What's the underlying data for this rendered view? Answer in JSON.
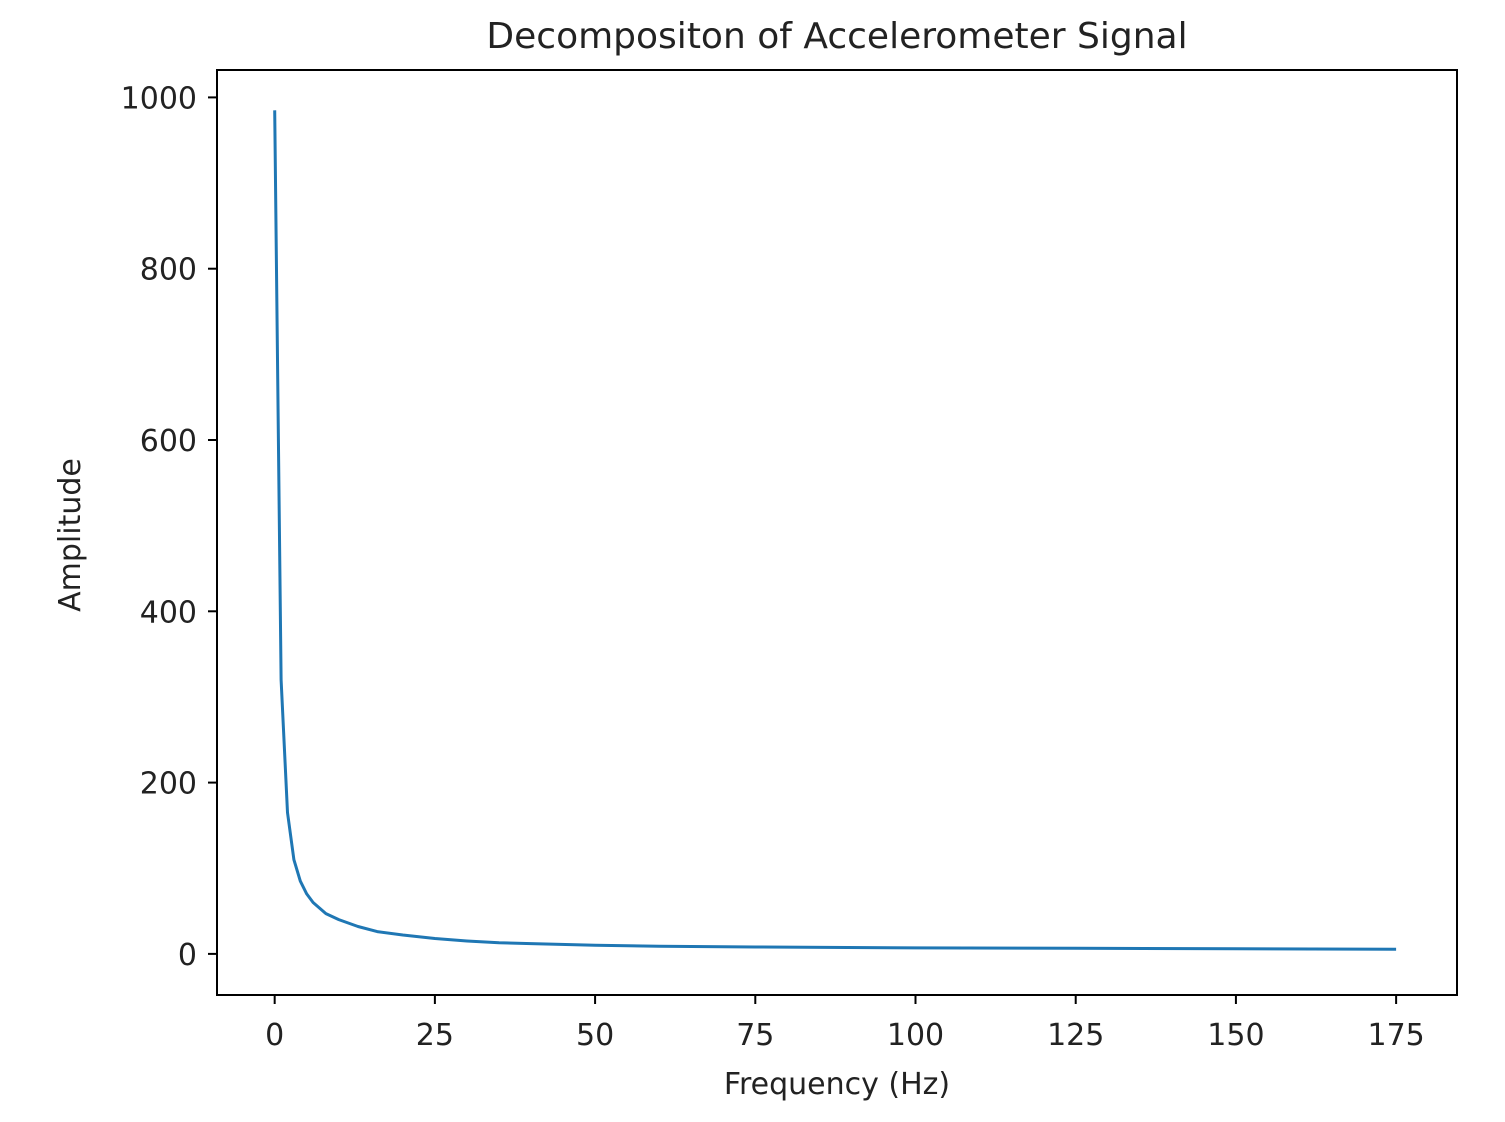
{
  "chart_data": {
    "type": "line",
    "title": "Decompositon of Accelerometer Signal",
    "xlabel": "Frequency (Hz)",
    "ylabel": "Amplitude",
    "xlim": [
      -9,
      184.5
    ],
    "ylim": [
      -48,
      1032
    ],
    "xticks": [
      0,
      25,
      50,
      75,
      100,
      125,
      150,
      175
    ],
    "xtick_labels": [
      "0",
      "25",
      "50",
      "75",
      "100",
      "125",
      "150",
      "175"
    ],
    "yticks": [
      0,
      200,
      400,
      600,
      800,
      1000
    ],
    "ytick_labels": [
      "0",
      "200",
      "400",
      "600",
      "800",
      "1000"
    ],
    "grid": false,
    "series": [
      {
        "color": "#1f77b4",
        "x": [
          0,
          1,
          2,
          3,
          4,
          5,
          6,
          8,
          10,
          13,
          16,
          20,
          25,
          30,
          35,
          40,
          50,
          60,
          75,
          100,
          125,
          150,
          175
        ],
        "y": [
          985,
          320,
          165,
          110,
          85,
          70,
          60,
          47,
          40,
          32,
          26,
          22,
          18,
          15,
          13,
          12,
          10,
          9,
          8,
          7,
          6.5,
          6,
          5.5
        ]
      }
    ]
  }
}
